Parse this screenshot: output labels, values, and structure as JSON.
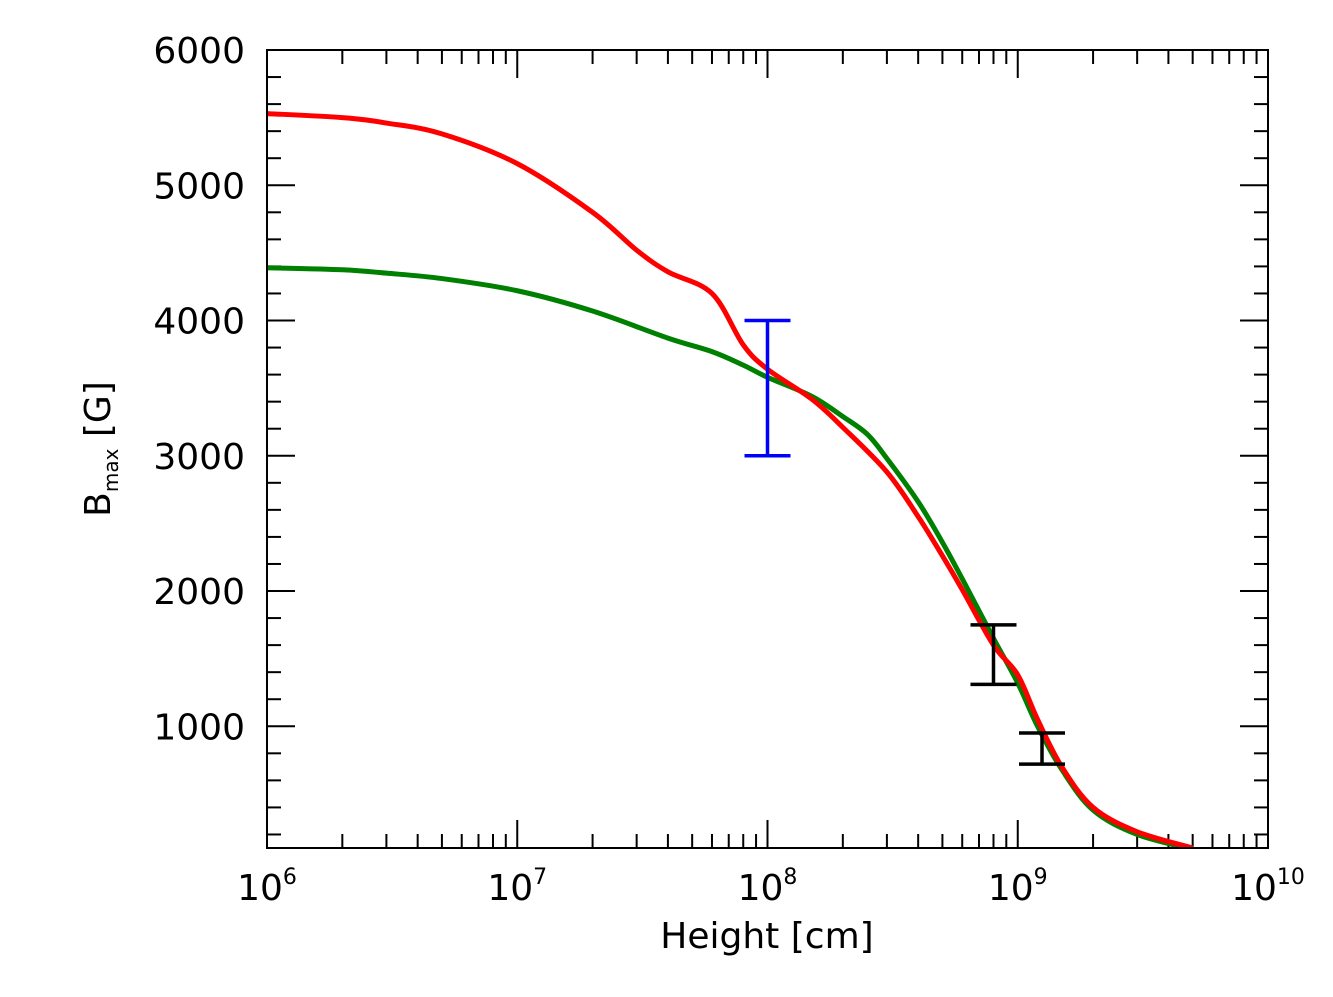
{
  "chart_data": {
    "type": "line",
    "xlabel": "Height [cm]",
    "ylabel": {
      "main": "B",
      "subscript": "max",
      "unit": "[G]"
    },
    "x_scale": "log",
    "xlim": [
      1000000,
      10000000000
    ],
    "ylim": [
      100,
      6000
    ],
    "x_ticks": [
      {
        "base": "10",
        "exp": "6",
        "value": 1000000
      },
      {
        "base": "10",
        "exp": "7",
        "value": 10000000
      },
      {
        "base": "10",
        "exp": "8",
        "value": 100000000
      },
      {
        "base": "10",
        "exp": "9",
        "value": 1000000000
      },
      {
        "base": "10",
        "exp": "10",
        "value": 10000000000
      }
    ],
    "y_ticks": [
      {
        "label": "1000",
        "value": 1000
      },
      {
        "label": "2000",
        "value": 2000
      },
      {
        "label": "3000",
        "value": 3000
      },
      {
        "label": "4000",
        "value": 4000
      },
      {
        "label": "5000",
        "value": 5000
      },
      {
        "label": "6000",
        "value": 6000
      }
    ],
    "grid": false,
    "series": [
      {
        "color": "#ff0000",
        "points": [
          [
            1000000,
            5530
          ],
          [
            2000000,
            5500
          ],
          [
            3000000,
            5460
          ],
          [
            5000000,
            5380
          ],
          [
            10000000,
            5160
          ],
          [
            20000000,
            4800
          ],
          [
            30000000,
            4520
          ],
          [
            40000000,
            4360
          ],
          [
            60000000,
            4200
          ],
          [
            80000000,
            3820
          ],
          [
            100000000,
            3640
          ],
          [
            150000000,
            3420
          ],
          [
            200000000,
            3210
          ],
          [
            300000000,
            2880
          ],
          [
            400000000,
            2550
          ],
          [
            500000000,
            2260
          ],
          [
            600000000,
            2010
          ],
          [
            800000000,
            1600
          ],
          [
            1000000000,
            1380
          ],
          [
            1200000000,
            1050
          ],
          [
            1500000000,
            700
          ],
          [
            2000000000,
            400
          ],
          [
            3000000000,
            220
          ],
          [
            5000000000,
            100
          ]
        ]
      },
      {
        "color": "#008000",
        "points": [
          [
            1000000,
            4390
          ],
          [
            2000000,
            4375
          ],
          [
            3000000,
            4350
          ],
          [
            5000000,
            4310
          ],
          [
            10000000,
            4220
          ],
          [
            20000000,
            4070
          ],
          [
            40000000,
            3870
          ],
          [
            60000000,
            3770
          ],
          [
            80000000,
            3670
          ],
          [
            100000000,
            3580
          ],
          [
            150000000,
            3440
          ],
          [
            200000000,
            3290
          ],
          [
            250000000,
            3160
          ],
          [
            300000000,
            2980
          ],
          [
            400000000,
            2660
          ],
          [
            500000000,
            2360
          ],
          [
            600000000,
            2090
          ],
          [
            800000000,
            1650
          ],
          [
            1000000000,
            1320
          ],
          [
            1200000000,
            1000
          ],
          [
            1500000000,
            680
          ],
          [
            2000000000,
            380
          ],
          [
            3000000000,
            200
          ],
          [
            5000000000,
            90
          ]
        ]
      }
    ],
    "error_bars": [
      {
        "color": "#0000ff",
        "x": 100000000,
        "y_low": 3000,
        "y_high": 4000
      },
      {
        "color": "#000000",
        "x": 800000000,
        "y_low": 1310,
        "y_high": 1750
      },
      {
        "color": "#000000",
        "x": 1250000000,
        "y_low": 720,
        "y_high": 950
      }
    ]
  }
}
